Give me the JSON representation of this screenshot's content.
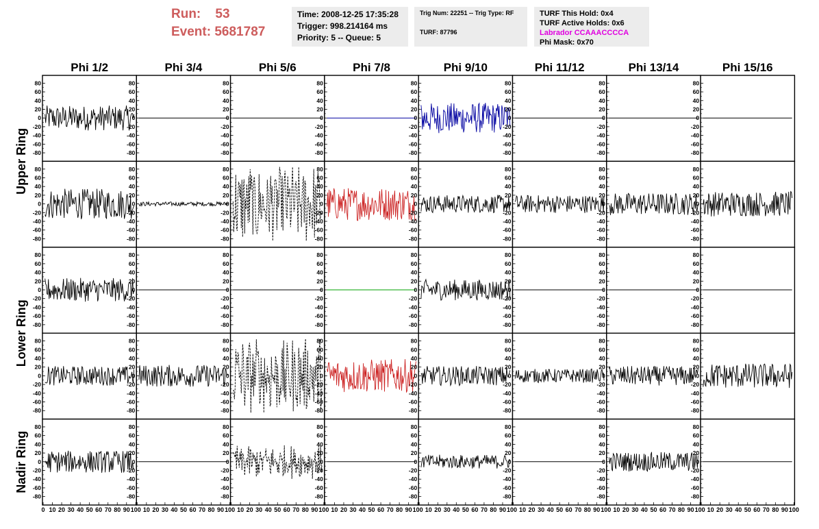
{
  "header": {
    "run_label": "Run:",
    "run_value": "53",
    "event_label": "Event:",
    "event_value": "5681787",
    "time": "Time: 2008-12-25 17:35:28",
    "trigger": "Trigger: 998.214164 ms",
    "priority": "Priority: 5 -- Queue: 5",
    "trig_num": "Trig Num: 22251 -- Trig Type: RF",
    "turf": "TURF: 87796",
    "turf_this_hold": "TURF This Hold: 0x4",
    "turf_active_holds": "TURF Active Holds: 0x6",
    "labrador": "Labrador CCAAACCCCA",
    "phi_mask": "Phi Mask: 0x70"
  },
  "colors": {
    "run_text": "#cd5c5c",
    "labrador_text": "#e000e0",
    "trace_black": "#000000",
    "trace_blue": "#0000a0",
    "trace_red": "#cc2222",
    "trace_green": "#00a000"
  },
  "chart_data": {
    "type": "line",
    "columns": [
      "Phi 1/2",
      "Phi 3/4",
      "Phi 5/6",
      "Phi 7/8",
      "Phi 9/10",
      "Phi 11/12",
      "Phi 13/14",
      "Phi 15/16"
    ],
    "ring_labels": [
      "Upper Ring",
      "Lower Ring",
      "Nadir Ring"
    ],
    "xlim": [
      0,
      100
    ],
    "ylim": [
      -90,
      90
    ],
    "x_ticks": [
      0,
      10,
      20,
      30,
      40,
      50,
      60,
      70,
      80,
      90,
      100
    ],
    "y_ticks": [
      -80,
      -60,
      -40,
      -20,
      0,
      20,
      40,
      60,
      80
    ],
    "rows": [
      [
        {
          "amp": 18,
          "style": "solid",
          "color": "#000000"
        },
        {
          "amp": 0,
          "style": "flat",
          "color": "#000000"
        },
        {
          "amp": 0,
          "style": "flat",
          "color": "#000000"
        },
        {
          "amp": 0,
          "style": "flat",
          "color": "#0000a0"
        },
        {
          "amp": 22,
          "style": "solid",
          "color": "#0000a0"
        },
        {
          "amp": 0,
          "style": "flat",
          "color": "#000000"
        },
        {
          "amp": 0,
          "style": "flat",
          "color": "#000000"
        },
        {
          "amp": 0,
          "style": "flat",
          "color": "#000000"
        }
      ],
      [
        {
          "amp": 22,
          "style": "solid",
          "color": "#000000"
        },
        {
          "amp": 3,
          "style": "solid",
          "color": "#000000"
        },
        {
          "amp": 62,
          "style": "dashed",
          "color": "#000000"
        },
        {
          "amp": 24,
          "style": "solid",
          "color": "#cc2222"
        },
        {
          "amp": 13,
          "style": "solid",
          "color": "#000000"
        },
        {
          "amp": 13,
          "style": "solid",
          "color": "#000000"
        },
        {
          "amp": 16,
          "style": "solid",
          "color": "#000000"
        },
        {
          "amp": 18,
          "style": "solid",
          "color": "#000000"
        }
      ],
      [
        {
          "amp": 17,
          "style": "solid",
          "color": "#000000"
        },
        {
          "amp": 0,
          "style": "flat",
          "color": "#000000"
        },
        {
          "amp": 0,
          "style": "flat",
          "color": "#000000"
        },
        {
          "amp": 0,
          "style": "flat",
          "color": "#00a000"
        },
        {
          "amp": 15,
          "style": "solid",
          "color": "#000000"
        },
        {
          "amp": 0,
          "style": "flat",
          "color": "#000000"
        },
        {
          "amp": 0,
          "style": "flat",
          "color": "#000000"
        },
        {
          "amp": 0,
          "style": "flat",
          "color": "#000000"
        }
      ],
      [
        {
          "amp": 14,
          "style": "solid",
          "color": "#000000"
        },
        {
          "amp": 16,
          "style": "solid",
          "color": "#000000"
        },
        {
          "amp": 58,
          "style": "dashed",
          "color": "#000000"
        },
        {
          "amp": 24,
          "style": "solid",
          "color": "#cc2222"
        },
        {
          "amp": 14,
          "style": "solid",
          "color": "#000000"
        },
        {
          "amp": 10,
          "style": "solid",
          "color": "#000000"
        },
        {
          "amp": 14,
          "style": "solid",
          "color": "#000000"
        },
        {
          "amp": 18,
          "style": "solid",
          "color": "#000000"
        }
      ],
      [
        {
          "amp": 16,
          "style": "solid",
          "color": "#000000"
        },
        {
          "amp": 0,
          "style": "flat",
          "color": "#000000"
        },
        {
          "amp": 25,
          "style": "dashed",
          "color": "#000000"
        },
        {
          "amp": 0,
          "style": "flat",
          "color": "#000000"
        },
        {
          "amp": 10,
          "style": "solid",
          "color": "#000000"
        },
        {
          "amp": 0,
          "style": "flat",
          "color": "#000000"
        },
        {
          "amp": 14,
          "style": "solid",
          "color": "#000000"
        },
        {
          "amp": 0,
          "style": "flat",
          "color": "#000000"
        }
      ]
    ]
  }
}
